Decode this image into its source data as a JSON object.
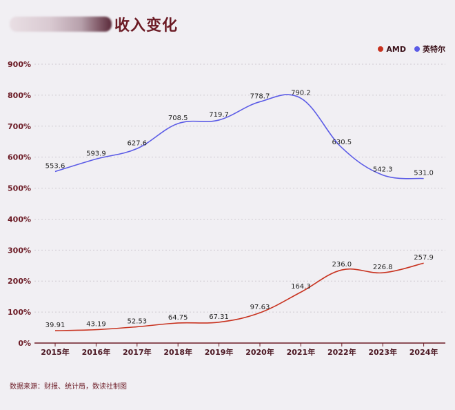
{
  "header": {
    "title": "收入变化"
  },
  "footer": {
    "source": "数据来源：财报、统计局，数读社制图"
  },
  "chart_data": {
    "type": "line",
    "title": "收入变化",
    "x": [
      "2015年",
      "2016年",
      "2017年",
      "2018年",
      "2019年",
      "2020年",
      "2021年",
      "2022年",
      "2023年",
      "2024年"
    ],
    "yticks": [
      "0%",
      "100%",
      "200%",
      "300%",
      "400%",
      "500%",
      "600%",
      "700%",
      "800%",
      "900%"
    ],
    "ylim": [
      0,
      900
    ],
    "grid": true,
    "legend_position": "top-right",
    "series": [
      {
        "name": "AMD",
        "color": "#c8321f",
        "values": [
          39.91,
          43.19,
          52.53,
          64.75,
          67.31,
          97.63,
          164.3,
          236.0,
          226.8,
          257.9
        ],
        "labels": [
          "39.91",
          "43.19",
          "52.53",
          "64.75",
          "67.31",
          "97.63",
          "164.3",
          "236.0",
          "226.8",
          "257.9"
        ]
      },
      {
        "name": "英特尔",
        "color": "#5b5be6",
        "values": [
          553.6,
          593.9,
          627.6,
          708.5,
          719.7,
          778.7,
          790.2,
          630.5,
          542.3,
          531.0
        ],
        "labels": [
          "553.6",
          "593.9",
          "627.6",
          "708.5",
          "719.7",
          "778.7",
          "790.2",
          "630.5",
          "542.3",
          "531.0"
        ]
      }
    ]
  }
}
